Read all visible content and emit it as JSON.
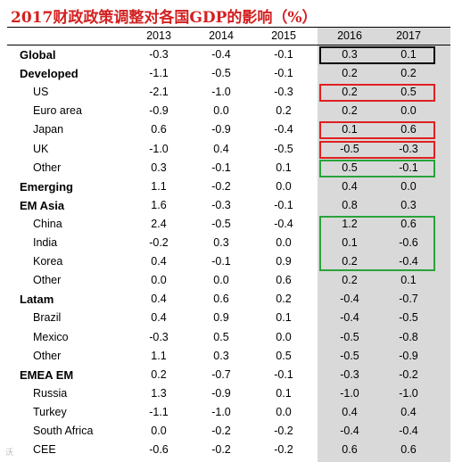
{
  "title": "2017财政政策调整对各国GDP的影响（%）",
  "watermark": "沃",
  "columns": [
    "2013",
    "2014",
    "2015",
    "2016",
    "2017"
  ],
  "rows": [
    {
      "label": "Global",
      "bold": true,
      "indent": false,
      "values": [
        "-0.3",
        "-0.4",
        "-0.1",
        "0.3",
        "0.1"
      ]
    },
    {
      "label": "Developed",
      "bold": true,
      "indent": false,
      "values": [
        "-1.1",
        "-0.5",
        "-0.1",
        "0.2",
        "0.2"
      ]
    },
    {
      "label": "US",
      "bold": false,
      "indent": true,
      "values": [
        "-2.1",
        "-1.0",
        "-0.3",
        "0.2",
        "0.5"
      ]
    },
    {
      "label": "Euro area",
      "bold": false,
      "indent": true,
      "values": [
        "-0.9",
        "0.0",
        "0.2",
        "0.2",
        "0.0"
      ]
    },
    {
      "label": "Japan",
      "bold": false,
      "indent": true,
      "values": [
        "0.6",
        "-0.9",
        "-0.4",
        "0.1",
        "0.6"
      ]
    },
    {
      "label": "UK",
      "bold": false,
      "indent": true,
      "values": [
        "-1.0",
        "0.4",
        "-0.5",
        "-0.5",
        "-0.3"
      ]
    },
    {
      "label": "Other",
      "bold": false,
      "indent": true,
      "values": [
        "0.3",
        "-0.1",
        "0.1",
        "0.5",
        "-0.1"
      ]
    },
    {
      "label": "Emerging",
      "bold": true,
      "indent": false,
      "values": [
        "1.1",
        "-0.2",
        "0.0",
        "0.4",
        "0.0"
      ]
    },
    {
      "label": "EM Asia",
      "bold": true,
      "indent": false,
      "values": [
        "1.6",
        "-0.3",
        "-0.1",
        "0.8",
        "0.3"
      ]
    },
    {
      "label": "China",
      "bold": false,
      "indent": true,
      "values": [
        "2.4",
        "-0.5",
        "-0.4",
        "1.2",
        "0.6"
      ]
    },
    {
      "label": "India",
      "bold": false,
      "indent": true,
      "values": [
        "-0.2",
        "0.3",
        "0.0",
        "0.1",
        "-0.6"
      ]
    },
    {
      "label": "Korea",
      "bold": false,
      "indent": true,
      "values": [
        "0.4",
        "-0.1",
        "0.9",
        "0.2",
        "-0.4"
      ]
    },
    {
      "label": "Other",
      "bold": false,
      "indent": true,
      "values": [
        "0.0",
        "0.0",
        "0.6",
        "0.2",
        "0.1"
      ]
    },
    {
      "label": "Latam",
      "bold": true,
      "indent": false,
      "values": [
        "0.4",
        "0.6",
        "0.2",
        "-0.4",
        "-0.7"
      ]
    },
    {
      "label": "Brazil",
      "bold": false,
      "indent": true,
      "values": [
        "0.4",
        "0.9",
        "0.1",
        "-0.4",
        "-0.5"
      ]
    },
    {
      "label": "Mexico",
      "bold": false,
      "indent": true,
      "values": [
        "-0.3",
        "0.5",
        "0.0",
        "-0.5",
        "-0.8"
      ]
    },
    {
      "label": "Other",
      "bold": false,
      "indent": true,
      "values": [
        "1.1",
        "0.3",
        "0.5",
        "-0.5",
        "-0.9"
      ]
    },
    {
      "label": "EMEA EM",
      "bold": true,
      "indent": false,
      "values": [
        "0.2",
        "-0.7",
        "-0.1",
        "-0.3",
        "-0.2"
      ]
    },
    {
      "label": "Russia",
      "bold": false,
      "indent": true,
      "values": [
        "1.3",
        "-0.9",
        "0.1",
        "-1.0",
        "-1.0"
      ]
    },
    {
      "label": "Turkey",
      "bold": false,
      "indent": true,
      "values": [
        "-1.1",
        "-1.0",
        "0.0",
        "0.4",
        "0.4"
      ]
    },
    {
      "label": "South Africa",
      "bold": false,
      "indent": true,
      "values": [
        "0.0",
        "-0.2",
        "-0.2",
        "-0.4",
        "-0.4"
      ]
    },
    {
      "label": "CEE",
      "bold": false,
      "indent": true,
      "values": [
        "-0.6",
        "-0.2",
        "-0.2",
        "0.6",
        "0.6"
      ]
    }
  ],
  "highlights": [
    {
      "rows": [
        0,
        0
      ],
      "color": "#000000"
    },
    {
      "rows": [
        2,
        2
      ],
      "color": "#e02020"
    },
    {
      "rows": [
        4,
        4
      ],
      "color": "#e02020"
    },
    {
      "rows": [
        5,
        5
      ],
      "color": "#e02020"
    },
    {
      "rows": [
        6,
        6
      ],
      "color": "#2aa33a"
    },
    {
      "rows": [
        9,
        11
      ],
      "color": "#2aa33a"
    }
  ],
  "chart_data": {
    "type": "table",
    "title": "2017财政政策调整对各国GDP的影响（%）",
    "columns": [
      "2013",
      "2014",
      "2015",
      "2016",
      "2017"
    ],
    "shaded_columns": [
      "2016",
      "2017"
    ],
    "shade_color": "#d9d9d9",
    "row_labels": [
      "Global",
      "Developed",
      "US",
      "Euro area",
      "Japan",
      "UK",
      "Other",
      "Emerging",
      "EM Asia",
      "China",
      "India",
      "Korea",
      "Other",
      "Latam",
      "Brazil",
      "Mexico",
      "Other",
      "EMEA EM",
      "Russia",
      "Turkey",
      "South Africa",
      "CEE"
    ],
    "values": [
      [
        -0.3,
        -0.4,
        -0.1,
        0.3,
        0.1
      ],
      [
        -1.1,
        -0.5,
        -0.1,
        0.2,
        0.2
      ],
      [
        -2.1,
        -1.0,
        -0.3,
        0.2,
        0.5
      ],
      [
        -0.9,
        0.0,
        0.2,
        0.2,
        0.0
      ],
      [
        0.6,
        -0.9,
        -0.4,
        0.1,
        0.6
      ],
      [
        -1.0,
        0.4,
        -0.5,
        -0.5,
        -0.3
      ],
      [
        0.3,
        -0.1,
        0.1,
        0.5,
        -0.1
      ],
      [
        1.1,
        -0.2,
        0.0,
        0.4,
        0.0
      ],
      [
        1.6,
        -0.3,
        -0.1,
        0.8,
        0.3
      ],
      [
        2.4,
        -0.5,
        -0.4,
        1.2,
        0.6
      ],
      [
        -0.2,
        0.3,
        0.0,
        0.1,
        -0.6
      ],
      [
        0.4,
        -0.1,
        0.9,
        0.2,
        -0.4
      ],
      [
        0.0,
        0.0,
        0.6,
        0.2,
        0.1
      ],
      [
        0.4,
        0.6,
        0.2,
        -0.4,
        -0.7
      ],
      [
        0.4,
        0.9,
        0.1,
        -0.4,
        -0.5
      ],
      [
        -0.3,
        0.5,
        0.0,
        -0.5,
        -0.8
      ],
      [
        1.1,
        0.3,
        0.5,
        -0.5,
        -0.9
      ],
      [
        0.2,
        -0.7,
        -0.1,
        -0.3,
        -0.2
      ],
      [
        1.3,
        -0.9,
        0.1,
        -1.0,
        -1.0
      ],
      [
        -1.1,
        -1.0,
        0.0,
        0.4,
        0.4
      ],
      [
        0.0,
        -0.2,
        -0.2,
        -0.4,
        -0.4
      ],
      [
        -0.6,
        -0.2,
        -0.2,
        0.6,
        0.6
      ]
    ]
  }
}
